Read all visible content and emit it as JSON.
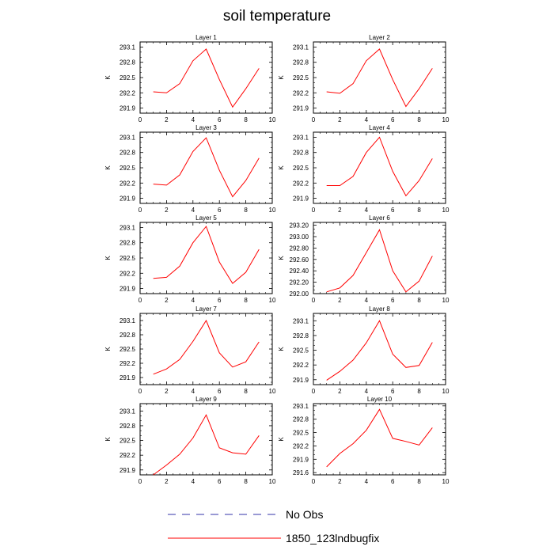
{
  "title": "soil temperature",
  "chart_data": [
    {
      "type": "line",
      "title": "Layer 1",
      "ylabel": "K",
      "xlim": [
        0,
        10
      ],
      "xticks": [
        0,
        2,
        4,
        6,
        8,
        10
      ],
      "ylim": [
        291.8,
        293.2
      ],
      "yticks": [
        291.9,
        292.2,
        292.5,
        292.8,
        293.1
      ],
      "ytick_labels": [
        "291.9",
        "292.2",
        "292.5",
        "292.8",
        "293.1"
      ],
      "series": [
        {
          "name": "1850_123lndbugfix",
          "x": [
            1,
            2,
            3,
            4,
            5,
            6,
            7,
            8,
            9
          ],
          "y": [
            292.22,
            292.2,
            292.38,
            292.83,
            293.06,
            292.46,
            291.92,
            292.28,
            292.68
          ]
        }
      ]
    },
    {
      "type": "line",
      "title": "Layer 2",
      "ylabel": "K",
      "xlim": [
        0,
        10
      ],
      "xticks": [
        0,
        2,
        4,
        6,
        8,
        10
      ],
      "ylim": [
        291.8,
        293.2
      ],
      "yticks": [
        291.9,
        292.2,
        292.5,
        292.8,
        293.1
      ],
      "ytick_labels": [
        "291.9",
        "292.2",
        "292.5",
        "292.8",
        "293.1"
      ],
      "series": [
        {
          "name": "1850_123lndbugfix",
          "x": [
            1,
            2,
            3,
            4,
            5,
            6,
            7,
            8,
            9
          ],
          "y": [
            292.22,
            292.19,
            292.38,
            292.83,
            293.06,
            292.46,
            291.93,
            292.28,
            292.68
          ]
        }
      ]
    },
    {
      "type": "line",
      "title": "Layer 3",
      "ylabel": "K",
      "xlim": [
        0,
        10
      ],
      "xticks": [
        0,
        2,
        4,
        6,
        8,
        10
      ],
      "ylim": [
        291.8,
        293.2
      ],
      "yticks": [
        291.9,
        292.2,
        292.5,
        292.8,
        293.1
      ],
      "ytick_labels": [
        "291.9",
        "292.2",
        "292.5",
        "292.8",
        "293.1"
      ],
      "series": [
        {
          "name": "1850_123lndbugfix",
          "x": [
            1,
            2,
            3,
            4,
            5,
            6,
            7,
            8,
            9
          ],
          "y": [
            292.18,
            292.16,
            292.36,
            292.82,
            293.09,
            292.45,
            291.93,
            292.25,
            292.69
          ]
        }
      ]
    },
    {
      "type": "line",
      "title": "Layer 4",
      "ylabel": "K",
      "xlim": [
        0,
        10
      ],
      "xticks": [
        0,
        2,
        4,
        6,
        8,
        10
      ],
      "ylim": [
        291.8,
        293.2
      ],
      "yticks": [
        291.9,
        292.2,
        292.5,
        292.8,
        293.1
      ],
      "ytick_labels": [
        "291.9",
        "292.2",
        "292.5",
        "292.8",
        "293.1"
      ],
      "series": [
        {
          "name": "1850_123lndbugfix",
          "x": [
            1,
            2,
            3,
            4,
            5,
            6,
            7,
            8,
            9
          ],
          "y": [
            292.15,
            292.15,
            292.33,
            292.8,
            293.1,
            292.43,
            291.95,
            292.25,
            292.68
          ]
        }
      ]
    },
    {
      "type": "line",
      "title": "Layer 5",
      "ylabel": "K",
      "xlim": [
        0,
        10
      ],
      "xticks": [
        0,
        2,
        4,
        6,
        8,
        10
      ],
      "ylim": [
        291.8,
        293.2
      ],
      "yticks": [
        291.9,
        292.2,
        292.5,
        292.8,
        293.1
      ],
      "ytick_labels": [
        "291.9",
        "292.2",
        "292.5",
        "292.8",
        "293.1"
      ],
      "series": [
        {
          "name": "1850_123lndbugfix",
          "x": [
            1,
            2,
            3,
            4,
            5,
            6,
            7,
            8,
            9
          ],
          "y": [
            292.1,
            292.12,
            292.34,
            292.8,
            293.12,
            292.42,
            292.0,
            292.22,
            292.67
          ]
        }
      ]
    },
    {
      "type": "line",
      "title": "Layer 6",
      "ylabel": "K",
      "xlim": [
        0,
        10
      ],
      "xticks": [
        0,
        2,
        4,
        6,
        8,
        10
      ],
      "ylim": [
        292.0,
        293.25
      ],
      "yticks": [
        292.0,
        292.2,
        292.4,
        292.6,
        292.8,
        293.0,
        293.2
      ],
      "ytick_labels": [
        "292.00",
        "292.20",
        "292.40",
        "292.60",
        "292.80",
        "293.00",
        "293.20"
      ],
      "series": [
        {
          "name": "1850_123lndbugfix",
          "x": [
            1,
            2,
            3,
            4,
            5,
            6,
            7,
            8,
            9
          ],
          "y": [
            292.03,
            292.1,
            292.32,
            292.72,
            293.12,
            292.4,
            292.03,
            292.22,
            292.66
          ]
        }
      ]
    },
    {
      "type": "line",
      "title": "Layer 7",
      "ylabel": "K",
      "xlim": [
        0,
        10
      ],
      "xticks": [
        0,
        2,
        4,
        6,
        8,
        10
      ],
      "ylim": [
        291.75,
        293.25
      ],
      "yticks": [
        291.9,
        292.2,
        292.5,
        292.8,
        293.1
      ],
      "ytick_labels": [
        "291.9",
        "292.2",
        "292.5",
        "292.8",
        "293.1"
      ],
      "series": [
        {
          "name": "1850_123lndbugfix",
          "x": [
            1,
            2,
            3,
            4,
            5,
            6,
            7,
            8,
            9
          ],
          "y": [
            291.97,
            292.08,
            292.28,
            292.66,
            293.1,
            292.42,
            292.12,
            292.23,
            292.65
          ]
        }
      ]
    },
    {
      "type": "line",
      "title": "Layer 8",
      "ylabel": "K",
      "xlim": [
        0,
        10
      ],
      "xticks": [
        0,
        2,
        4,
        6,
        8,
        10
      ],
      "ylim": [
        291.8,
        293.25
      ],
      "yticks": [
        291.9,
        292.2,
        292.5,
        292.8,
        293.1
      ],
      "ytick_labels": [
        "291.9",
        "292.2",
        "292.5",
        "292.8",
        "293.1"
      ],
      "series": [
        {
          "name": "1850_123lndbugfix",
          "x": [
            1,
            2,
            3,
            4,
            5,
            6,
            7,
            8,
            9
          ],
          "y": [
            291.89,
            292.07,
            292.3,
            292.65,
            293.1,
            292.42,
            292.15,
            292.19,
            292.66
          ]
        }
      ]
    },
    {
      "type": "line",
      "title": "Layer 9",
      "ylabel": "K",
      "xlim": [
        0,
        10
      ],
      "xticks": [
        0,
        2,
        4,
        6,
        8,
        10
      ],
      "ylim": [
        291.8,
        293.25
      ],
      "yticks": [
        291.9,
        292.2,
        292.5,
        292.8,
        293.1
      ],
      "ytick_labels": [
        "291.9",
        "292.2",
        "292.5",
        "292.8",
        "293.1"
      ],
      "series": [
        {
          "name": "1850_123lndbugfix",
          "x": [
            1,
            2,
            3,
            4,
            5,
            6,
            7,
            8,
            9
          ],
          "y": [
            291.8,
            292.0,
            292.22,
            292.55,
            293.02,
            292.35,
            292.25,
            292.22,
            292.6
          ]
        }
      ]
    },
    {
      "type": "line",
      "title": "Layer 10",
      "ylabel": "K",
      "xlim": [
        0,
        10
      ],
      "xticks": [
        0,
        2,
        4,
        6,
        8,
        10
      ],
      "ylim": [
        291.55,
        293.15
      ],
      "yticks": [
        291.6,
        291.9,
        292.2,
        292.5,
        292.8,
        293.1
      ],
      "ytick_labels": [
        "291.6",
        "291.9",
        "292.2",
        "292.5",
        "292.8",
        "293.1"
      ],
      "series": [
        {
          "name": "1850_123lndbugfix",
          "x": [
            1,
            2,
            3,
            4,
            5,
            6,
            7,
            8,
            9
          ],
          "y": [
            291.73,
            292.03,
            292.25,
            292.55,
            293.02,
            292.37,
            292.3,
            292.22,
            292.61
          ]
        }
      ]
    }
  ],
  "legend": [
    {
      "label": "No Obs",
      "color": "#3333aa",
      "dashed": true
    },
    {
      "label": "1850_123lndbugfix",
      "color": "#ff0000",
      "dashed": false
    }
  ],
  "colors": {
    "series": "#ff0000",
    "axis": "#000000"
  }
}
